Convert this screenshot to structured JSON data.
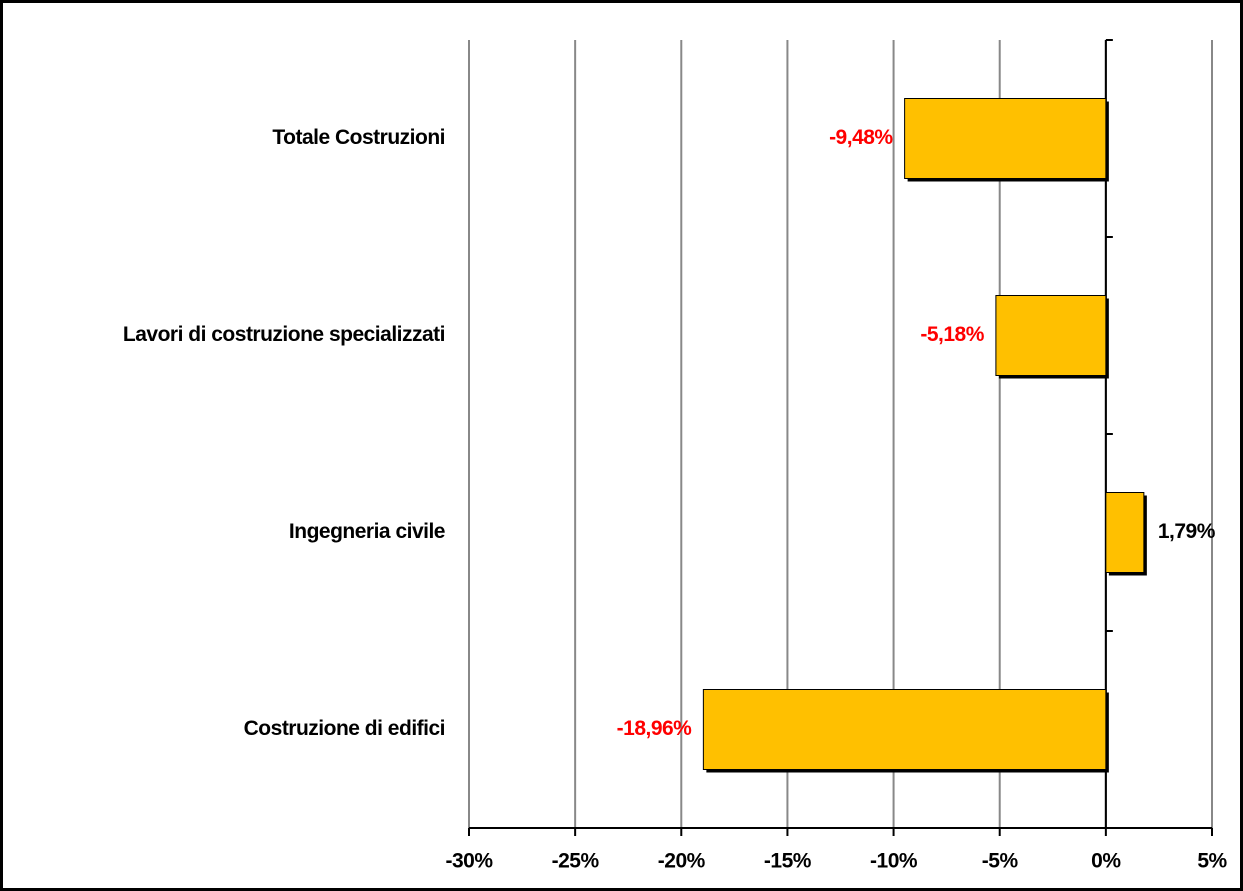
{
  "chart_data": {
    "type": "barh",
    "categories": [
      "Totale Costruzioni",
      "Lavori di costruzione specializzati",
      "Ingegneria civile",
      "Costruzione di edifici"
    ],
    "values": [
      -9.48,
      -5.18,
      1.79,
      -18.96
    ],
    "value_labels": [
      "-9,48%",
      "-5,18%",
      "1,79%",
      "-18,96%"
    ],
    "value_label_colors": [
      "#ff0000",
      "#ff0000",
      "#000000",
      "#ff0000"
    ],
    "color": "#ffc000",
    "xlim": [
      -30,
      5
    ],
    "xticks": [
      {
        "value": -30,
        "label": "-30%"
      },
      {
        "value": -25,
        "label": "-25%"
      },
      {
        "value": -20,
        "label": "-20%"
      },
      {
        "value": -15,
        "label": "-15%"
      },
      {
        "value": -10,
        "label": "-10%"
      },
      {
        "value": -5,
        "label": "-5%"
      },
      {
        "value": 0,
        "label": "0%"
      },
      {
        "value": 5,
        "label": "5%"
      }
    ],
    "grid": true
  }
}
